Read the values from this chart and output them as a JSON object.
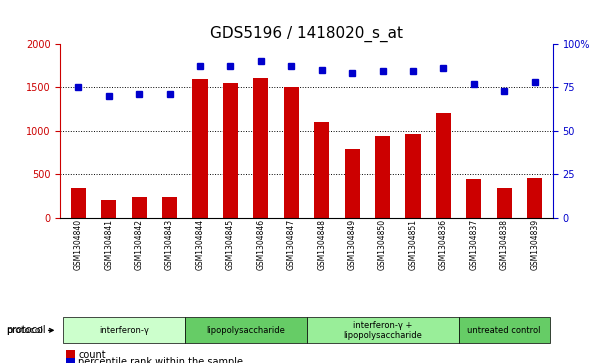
{
  "title": "GDS5196 / 1418020_s_at",
  "samples": [
    "GSM1304840",
    "GSM1304841",
    "GSM1304842",
    "GSM1304843",
    "GSM1304844",
    "GSM1304845",
    "GSM1304846",
    "GSM1304847",
    "GSM1304848",
    "GSM1304849",
    "GSM1304850",
    "GSM1304851",
    "GSM1304836",
    "GSM1304837",
    "GSM1304838",
    "GSM1304839"
  ],
  "counts": [
    340,
    210,
    240,
    240,
    1590,
    1545,
    1610,
    1500,
    1100,
    790,
    940,
    960,
    1200,
    450,
    340,
    460
  ],
  "percentiles": [
    75,
    70,
    71,
    71,
    87,
    87,
    90,
    87,
    85,
    83,
    84,
    84,
    86,
    77,
    73,
    78
  ],
  "bar_color": "#cc0000",
  "dot_color": "#0000cc",
  "ylim_left": [
    0,
    2000
  ],
  "ylim_right": [
    0,
    100
  ],
  "yticks_left": [
    0,
    500,
    1000,
    1500,
    2000
  ],
  "yticks_right": [
    0,
    25,
    50,
    75,
    100
  ],
  "ytick_labels_right": [
    "0",
    "25",
    "50",
    "75",
    "100%"
  ],
  "groups": [
    {
      "label": "interferon-γ",
      "start": 0,
      "end": 4,
      "color": "#ccffcc"
    },
    {
      "label": "lipopolysaccharide",
      "start": 4,
      "end": 8,
      "color": "#66cc66"
    },
    {
      "label": "interferon-γ +\nlipopolysaccharide",
      "start": 8,
      "end": 13,
      "color": "#99ee99"
    },
    {
      "label": "untreated control",
      "start": 13,
      "end": 16,
      "color": "#66cc66"
    }
  ],
  "protocol_label": "protocol",
  "legend_count_label": "count",
  "legend_percentile_label": "percentile rank within the sample",
  "title_fontsize": 11,
  "axis_label_fontsize": 8,
  "tick_fontsize": 7
}
